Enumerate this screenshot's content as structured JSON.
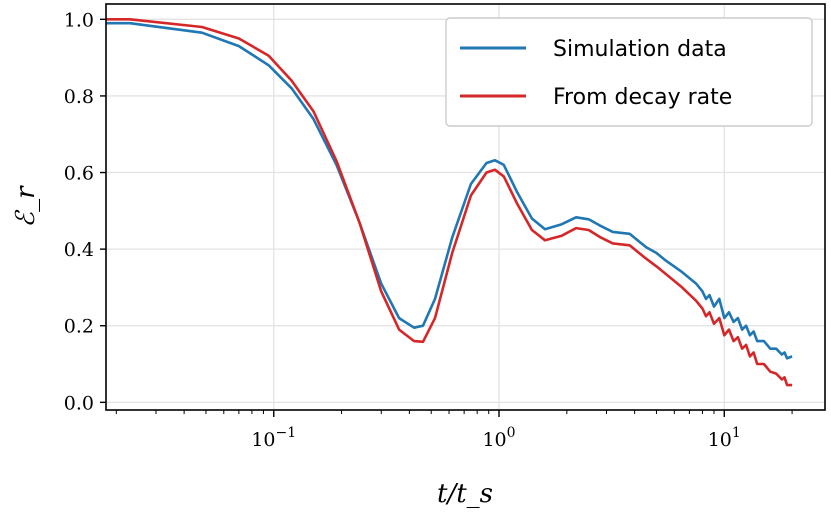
{
  "chart_data": {
    "type": "line",
    "xscale": "log",
    "xlabel": "t/t_s",
    "ylabel": "ℰ_r",
    "xlim": [
      0.018,
      28
    ],
    "ylim": [
      -0.02,
      1.04
    ],
    "grid": true,
    "legend_position": "top-right",
    "x_ticks": [
      {
        "value": 0.1,
        "base": "10",
        "exp": "−1"
      },
      {
        "value": 1,
        "base": "10",
        "exp": "0"
      },
      {
        "value": 10,
        "base": "10",
        "exp": "1"
      }
    ],
    "y_ticks": [
      {
        "value": 0.0,
        "label": "0.0"
      },
      {
        "value": 0.2,
        "label": "0.2"
      },
      {
        "value": 0.4,
        "label": "0.4"
      },
      {
        "value": 0.6,
        "label": "0.6"
      },
      {
        "value": 0.8,
        "label": "0.8"
      },
      {
        "value": 1.0,
        "label": "1.0"
      }
    ],
    "series": [
      {
        "name": "Simulation data",
        "color": "#1f77b4",
        "x": [
          0.018,
          0.023,
          0.048,
          0.07,
          0.095,
          0.12,
          0.15,
          0.19,
          0.24,
          0.3,
          0.36,
          0.42,
          0.46,
          0.52,
          0.62,
          0.75,
          0.88,
          0.96,
          1.05,
          1.2,
          1.4,
          1.6,
          1.9,
          2.2,
          2.5,
          2.8,
          3.2,
          3.8,
          4.5,
          5.0,
          5.5,
          6.5,
          7.5,
          8.0,
          8.3,
          8.6,
          9.0,
          9.5,
          10.0,
          10.5,
          11.0,
          11.5,
          12.0,
          12.5,
          13.0,
          13.5,
          14.0,
          15.0,
          16.0,
          17.0,
          18.0,
          18.5,
          19.0,
          20.0
        ],
        "y": [
          0.99,
          0.99,
          0.965,
          0.93,
          0.88,
          0.82,
          0.74,
          0.62,
          0.47,
          0.31,
          0.22,
          0.195,
          0.2,
          0.27,
          0.43,
          0.57,
          0.625,
          0.632,
          0.62,
          0.55,
          0.48,
          0.452,
          0.465,
          0.483,
          0.478,
          0.462,
          0.445,
          0.44,
          0.405,
          0.39,
          0.37,
          0.34,
          0.31,
          0.29,
          0.27,
          0.28,
          0.25,
          0.27,
          0.22,
          0.235,
          0.21,
          0.22,
          0.19,
          0.2,
          0.175,
          0.185,
          0.16,
          0.16,
          0.14,
          0.14,
          0.125,
          0.13,
          0.115,
          0.12
        ]
      },
      {
        "name": "From decay rate",
        "color": "#d62728",
        "x": [
          0.018,
          0.023,
          0.048,
          0.07,
          0.095,
          0.12,
          0.15,
          0.19,
          0.24,
          0.3,
          0.36,
          0.42,
          0.46,
          0.52,
          0.62,
          0.75,
          0.88,
          0.96,
          1.05,
          1.2,
          1.4,
          1.6,
          1.9,
          2.2,
          2.5,
          2.8,
          3.2,
          3.8,
          4.5,
          5.0,
          5.5,
          6.5,
          7.5,
          8.0,
          8.3,
          8.6,
          9.0,
          9.5,
          10.0,
          10.5,
          11.0,
          11.5,
          12.0,
          12.5,
          13.0,
          13.5,
          14.0,
          15.0,
          16.0,
          17.0,
          18.0,
          18.5,
          19.0,
          20.0
        ],
        "y": [
          1.0,
          1.0,
          0.98,
          0.95,
          0.905,
          0.84,
          0.76,
          0.63,
          0.47,
          0.29,
          0.19,
          0.16,
          0.158,
          0.22,
          0.39,
          0.54,
          0.6,
          0.607,
          0.59,
          0.52,
          0.45,
          0.423,
          0.435,
          0.455,
          0.45,
          0.432,
          0.415,
          0.41,
          0.375,
          0.355,
          0.335,
          0.3,
          0.265,
          0.245,
          0.225,
          0.235,
          0.205,
          0.22,
          0.175,
          0.19,
          0.16,
          0.17,
          0.14,
          0.15,
          0.12,
          0.13,
          0.1,
          0.1,
          0.08,
          0.075,
          0.06,
          0.065,
          0.045,
          0.045
        ]
      }
    ]
  }
}
